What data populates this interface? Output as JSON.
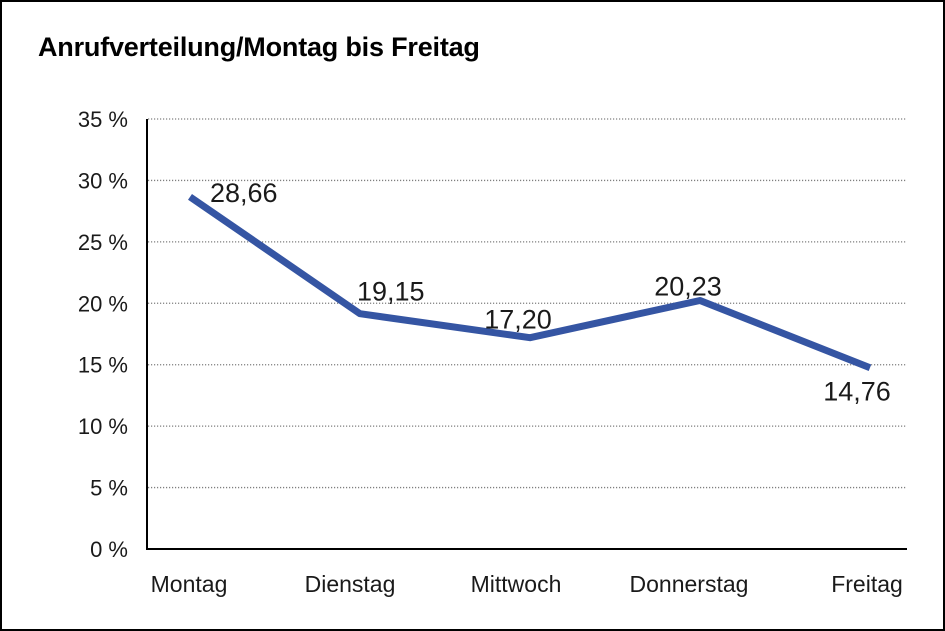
{
  "chart_data": {
    "type": "line",
    "title": "Anrufverteilung/Montag bis Freitag",
    "categories": [
      "Montag",
      "Dienstag",
      "Mittwoch",
      "Donnerstag",
      "Freitag"
    ],
    "series": [
      {
        "name": "Anrufverteilung",
        "values": [
          28.66,
          19.15,
          17.2,
          20.23,
          14.76
        ],
        "value_labels": [
          "28,66",
          "19,15",
          "17,20",
          "20,23",
          "14,76"
        ]
      }
    ],
    "ylim": [
      0,
      35
    ],
    "ytick_step": 5,
    "yticks": [
      0,
      5,
      10,
      15,
      20,
      25,
      30,
      35
    ],
    "ytick_labels": [
      "0 %",
      "5 %",
      "10 %",
      "15 %",
      "20 %",
      "25 %",
      "30 %",
      "35 %"
    ],
    "xlabel": "",
    "ylabel": "",
    "legend": "none",
    "grid": "horizontal-dotted",
    "colors": {
      "line": "#3555A3",
      "axis": "#000000",
      "gridline": "#7f7f7f",
      "text": "#1a1a1a",
      "title": "#000000",
      "background": "#ffffff",
      "border": "#000000"
    }
  }
}
